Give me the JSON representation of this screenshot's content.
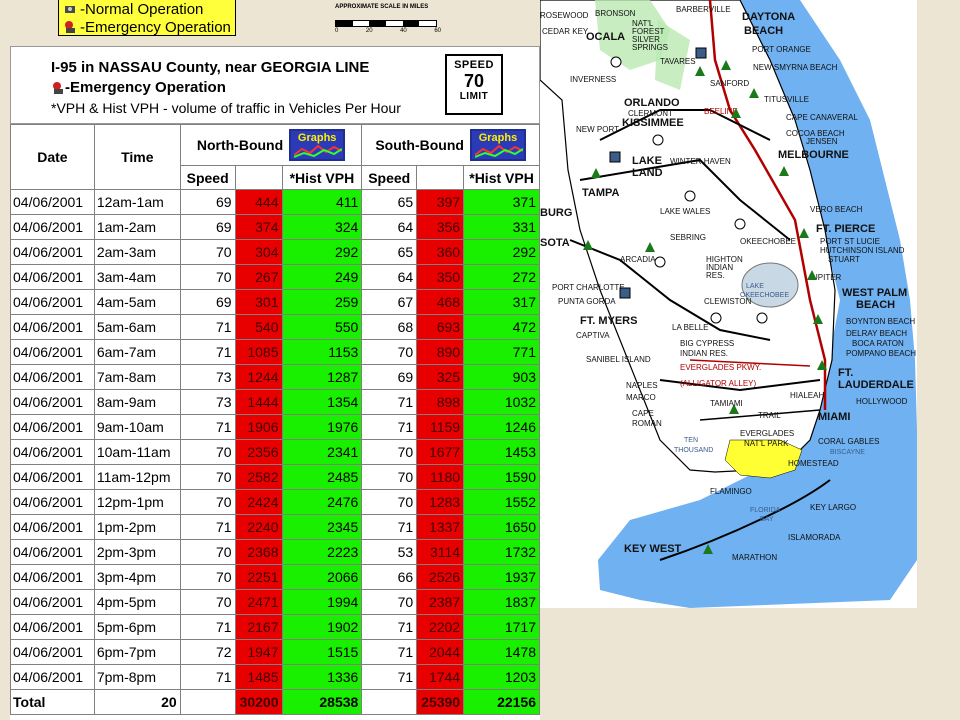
{
  "legend": {
    "normal_label": "-Normal Operation",
    "emergency_label": "-Emergency Operation"
  },
  "scale": {
    "title": "APPROXIMATE SCALE IN MILES",
    "ticks": [
      "0",
      "20",
      "40",
      "60"
    ]
  },
  "header": {
    "title": "I-95 in NASSAU County, near GEORGIA LINE",
    "emergency": "-Emergency Operation",
    "note": "*VPH & Hist VPH - volume of traffic in Vehicles Per Hour"
  },
  "speed_sign": {
    "top": "SPEED",
    "value": "70",
    "bottom": "LIMIT"
  },
  "table": {
    "col_date": "Date",
    "col_time": "Time",
    "north_label": "North-Bound",
    "south_label": "South-Bound",
    "graphs_label": "Graphs",
    "sub_speed": "Speed",
    "sub_vph": "*VPH",
    "sub_hist": "*Hist VPH",
    "rows": [
      {
        "date": "04/06/2001",
        "time": "12am-1am",
        "nb_speed": "69",
        "nb_vph": "444",
        "nb_hist": "411",
        "sb_speed": "65",
        "sb_vph": "397",
        "sb_hist": "371"
      },
      {
        "date": "04/06/2001",
        "time": "1am-2am",
        "nb_speed": "69",
        "nb_vph": "374",
        "nb_hist": "324",
        "sb_speed": "64",
        "sb_vph": "356",
        "sb_hist": "331"
      },
      {
        "date": "04/06/2001",
        "time": "2am-3am",
        "nb_speed": "70",
        "nb_vph": "304",
        "nb_hist": "292",
        "sb_speed": "65",
        "sb_vph": "360",
        "sb_hist": "292"
      },
      {
        "date": "04/06/2001",
        "time": "3am-4am",
        "nb_speed": "70",
        "nb_vph": "267",
        "nb_hist": "249",
        "sb_speed": "64",
        "sb_vph": "350",
        "sb_hist": "272"
      },
      {
        "date": "04/06/2001",
        "time": "4am-5am",
        "nb_speed": "69",
        "nb_vph": "301",
        "nb_hist": "259",
        "sb_speed": "67",
        "sb_vph": "468",
        "sb_hist": "317"
      },
      {
        "date": "04/06/2001",
        "time": "5am-6am",
        "nb_speed": "71",
        "nb_vph": "540",
        "nb_hist": "550",
        "sb_speed": "68",
        "sb_vph": "693",
        "sb_hist": "472"
      },
      {
        "date": "04/06/2001",
        "time": "6am-7am",
        "nb_speed": "71",
        "nb_vph": "1085",
        "nb_hist": "1153",
        "sb_speed": "70",
        "sb_vph": "890",
        "sb_hist": "771"
      },
      {
        "date": "04/06/2001",
        "time": "7am-8am",
        "nb_speed": "73",
        "nb_vph": "1244",
        "nb_hist": "1287",
        "sb_speed": "69",
        "sb_vph": "325",
        "sb_hist": "903"
      },
      {
        "date": "04/06/2001",
        "time": "8am-9am",
        "nb_speed": "73",
        "nb_vph": "1444",
        "nb_hist": "1354",
        "sb_speed": "71",
        "sb_vph": "898",
        "sb_hist": "1032"
      },
      {
        "date": "04/06/2001",
        "time": "9am-10am",
        "nb_speed": "71",
        "nb_vph": "1906",
        "nb_hist": "1976",
        "sb_speed": "71",
        "sb_vph": "1159",
        "sb_hist": "1246"
      },
      {
        "date": "04/06/2001",
        "time": "10am-11am",
        "nb_speed": "70",
        "nb_vph": "2356",
        "nb_hist": "2341",
        "sb_speed": "70",
        "sb_vph": "1677",
        "sb_hist": "1453"
      },
      {
        "date": "04/06/2001",
        "time": "11am-12pm",
        "nb_speed": "70",
        "nb_vph": "2582",
        "nb_hist": "2485",
        "sb_speed": "70",
        "sb_vph": "1180",
        "sb_hist": "1590"
      },
      {
        "date": "04/06/2001",
        "time": "12pm-1pm",
        "nb_speed": "70",
        "nb_vph": "2424",
        "nb_hist": "2476",
        "sb_speed": "70",
        "sb_vph": "1283",
        "sb_hist": "1552"
      },
      {
        "date": "04/06/2001",
        "time": "1pm-2pm",
        "nb_speed": "71",
        "nb_vph": "2240",
        "nb_hist": "2345",
        "sb_speed": "71",
        "sb_vph": "1337",
        "sb_hist": "1650"
      },
      {
        "date": "04/06/2001",
        "time": "2pm-3pm",
        "nb_speed": "70",
        "nb_vph": "2368",
        "nb_hist": "2223",
        "sb_speed": "53",
        "sb_vph": "3114",
        "sb_hist": "1732"
      },
      {
        "date": "04/06/2001",
        "time": "3pm-4pm",
        "nb_speed": "70",
        "nb_vph": "2251",
        "nb_hist": "2066",
        "sb_speed": "66",
        "sb_vph": "2526",
        "sb_hist": "1937"
      },
      {
        "date": "04/06/2001",
        "time": "4pm-5pm",
        "nb_speed": "70",
        "nb_vph": "2471",
        "nb_hist": "1994",
        "sb_speed": "70",
        "sb_vph": "2387",
        "sb_hist": "1837"
      },
      {
        "date": "04/06/2001",
        "time": "5pm-6pm",
        "nb_speed": "71",
        "nb_vph": "2167",
        "nb_hist": "1902",
        "sb_speed": "71",
        "sb_vph": "2202",
        "sb_hist": "1717"
      },
      {
        "date": "04/06/2001",
        "time": "6pm-7pm",
        "nb_speed": "72",
        "nb_vph": "1947",
        "nb_hist": "1515",
        "sb_speed": "71",
        "sb_vph": "2044",
        "sb_hist": "1478"
      },
      {
        "date": "04/06/2001",
        "time": "7pm-8pm",
        "nb_speed": "71",
        "nb_vph": "1485",
        "nb_hist": "1336",
        "sb_speed": "71",
        "sb_vph": "1744",
        "sb_hist": "1203"
      }
    ],
    "total": {
      "label": "Total",
      "time": "20",
      "nb_vph": "30200",
      "nb_hist": "28538",
      "sb_vph": "25390",
      "sb_hist": "22156"
    }
  },
  "map": {
    "labels": {
      "rosewood": "ROSEWOOD",
      "bronson": "BRONSON",
      "cedar_key": "CEDAR KEY",
      "ocala": "OCALA",
      "natl_forest": "NAT'L",
      "forest": "FOREST",
      "silver": "SILVER",
      "springs": "SPRINGS",
      "barberville": "BARBERVILLE",
      "daytona": "DAYTONA",
      "beach": "BEACH",
      "port_orange": "PORT ORANGE",
      "inverness": "INVERNESS",
      "tavares": "TAVARES",
      "new_smyrna": "NEW SMYRNA BEACH",
      "sanford": "SANFORD",
      "orlando": "ORLANDO",
      "kissimmee": "KISSIMMEE",
      "titusville": "TITUSVILLE",
      "cape_canaveral": "CAPE CANAVERAL",
      "cocoa_beach": "COCOA BEACH",
      "melbourne": "MELBOURNE",
      "new_port_richey": "NEW PORT",
      "tampa": "TAMPA",
      "lakeland": "LAKE",
      "land": "LAND",
      "winter_haven": "WINTER HAVEN",
      "vero_beach": "VERO BEACH",
      "sebring": "SEBRING",
      "okeechobee": "OKEECHOBEE",
      "ft_pierce": "FT. PIERCE",
      "port_st_lucie": "PORT ST LUCIE",
      "hutchinson": "HUTCHINSON ISLAND",
      "stuart": "STUART",
      "sarasota": "SOTA",
      "bradenton": "BURG",
      "arcadia": "ARCADIA",
      "port_charlotte": "PORT CHARLOTTE",
      "punta_gorda": "PUNTA GORDA",
      "west_palm": "WEST PALM",
      "wp_beach": "BEACH",
      "boynton": "BOYNTON BEACH",
      "delray": "DELRAY BEACH",
      "boca": "BOCA RATON",
      "pompano": "POMPANO BEACH",
      "ft_myers": "FT. MYERS",
      "clewiston": "CLEWISTON",
      "labelle": "LA BELLE",
      "ft_lauderdale": "FT.",
      "lauderdale": "LAUDERDALE",
      "hollywood": "HOLLYWOOD",
      "naples": "NAPLES",
      "everglades_pkwy": "EVERGLADES PKWY.",
      "alligator_alley": "(ALLIGATOR ALLEY)",
      "big_cypress": "BIG CYPRESS",
      "indian_res": "INDIAN RES.",
      "everglades_np": "EVERGLADES",
      "natl_park": "NAT'L PARK",
      "miami": "MIAMI",
      "coral_gables": "CORAL GABLES",
      "homestead": "HOMESTEAD",
      "flamingo": "FLAMINGO",
      "key_largo": "KEY LARGO",
      "islamorada": "ISLAMORADA",
      "marathon": "MARATHON",
      "key_west": "KEY WEST",
      "tamiami": "TAMIAMI",
      "trail": "TRAIL",
      "cape_romano": "CAPE",
      "romano": "ROMAN",
      "ten_thousand": "TEN",
      "thousand": "THOUSAND",
      "lake_okeechobee": "LAKE",
      "okeechobee_lake": "OKEECHOBEE",
      "florida_bay": "FLORIDA",
      "bay": "BAY",
      "captiva": "CAPTIVA",
      "sanibel": "SANIBEL ISLAND",
      "marco": "MARCO",
      "clermont": "CLERMONT",
      "lake_wales": "LAKE WALES",
      "beeline": "BEELINE",
      "hialeah": "HIALEAH",
      "biscayne": "BISCAYNE",
      "highlands": "HIGHTON",
      "indian": "INDIAN",
      "res": "RES.",
      "jensen": "JENSEN",
      "jupiter": "JUPITER"
    }
  }
}
